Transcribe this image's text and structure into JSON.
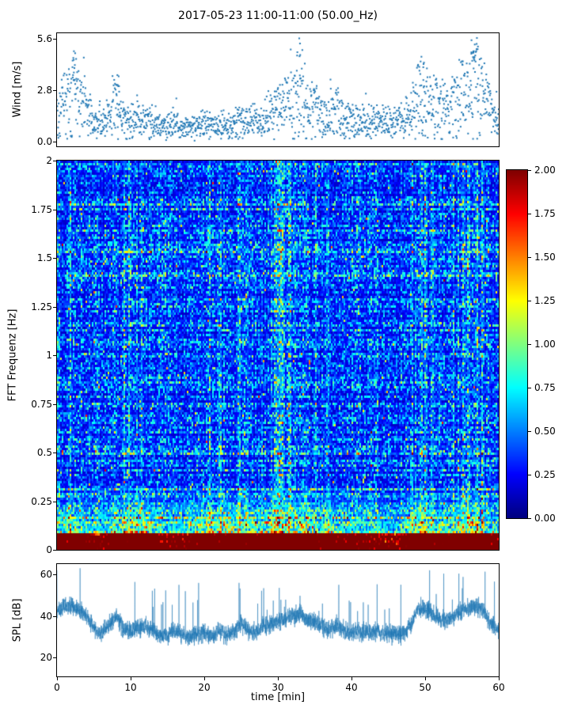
{
  "title": "2017-05-23 11:00-11:00 (50.00_Hz)",
  "xlabel": "time [min]",
  "xticks": {
    "values": [
      0,
      10,
      20,
      30,
      40,
      50,
      60
    ],
    "labels": [
      "0",
      "10",
      "20",
      "30",
      "40",
      "50",
      "60"
    ]
  },
  "colorbar": {
    "colormap": "jet",
    "range": [
      0,
      2
    ],
    "tick_values": [
      2,
      1.75,
      1.5,
      1.25,
      1,
      0.75,
      0.5,
      0.25,
      0
    ],
    "tick_labels": [
      "2.00",
      "1.75",
      "1.50",
      "1.25",
      "1.00",
      "0.75",
      "0.50",
      "0.25",
      "0.00"
    ]
  },
  "chart_data": [
    {
      "type": "scatter",
      "name": "wind",
      "ylabel": "Wind [m/s]",
      "x_range": [
        0,
        60
      ],
      "data_y_range": [
        0,
        5.6
      ],
      "axis_y_range": [
        -0.28,
        5.88
      ],
      "yticks": {
        "values": [
          0,
          2.8,
          5.6
        ],
        "labels": [
          "0.0",
          "2.8",
          "5.6"
        ]
      },
      "point_color": "#1f77b4",
      "n_points": 1600,
      "mean_per_minute": [
        2.2,
        3.0,
        3.2,
        3.0,
        2.2,
        1.2,
        1.0,
        1.5,
        2.5,
        1.6,
        1.3,
        1.5,
        1.4,
        1.2,
        1.0,
        1.0,
        1.2,
        1.0,
        0.9,
        1.0,
        1.1,
        1.0,
        1.2,
        1.0,
        1.1,
        1.5,
        1.3,
        1.2,
        1.5,
        1.8,
        2.2,
        2.5,
        2.8,
        3.0,
        2.5,
        2.2,
        1.8,
        1.5,
        2.0,
        1.5,
        1.3,
        1.5,
        1.3,
        1.5,
        1.3,
        1.2,
        1.3,
        1.2,
        2.0,
        3.0,
        3.2,
        2.8,
        2.5,
        2.2,
        2.8,
        3.2,
        3.5,
        3.8,
        3.2,
        2.0,
        1.5
      ],
      "peak_points": [
        [
          2.3,
          4.9
        ],
        [
          8.2,
          3.6
        ],
        [
          32.9,
          5.6
        ],
        [
          49.5,
          4.6
        ],
        [
          56.3,
          5.5
        ],
        [
          57.0,
          5.3
        ]
      ]
    },
    {
      "type": "heatmap",
      "name": "spectrogram",
      "ylabel": "FFT Frequenz [Hz]",
      "x_range": [
        0,
        60
      ],
      "y_range": [
        0,
        2
      ],
      "colormap": "jet",
      "value_range": [
        0,
        2
      ],
      "yticks": {
        "values": [
          0,
          0.25,
          0.5,
          0.75,
          1,
          1.25,
          1.5,
          1.75,
          2
        ],
        "labels": [
          "0",
          "0.25",
          "0.5",
          "0.75",
          "1",
          "1.25",
          "1.5",
          "1.75",
          "2"
        ]
      },
      "low_frequency_cutoff": 0.4,
      "activity_per_minute": [
        0.7,
        0.8,
        0.8,
        0.7,
        0.5,
        0.4,
        0.4,
        0.5,
        0.8,
        0.9,
        0.9,
        1.0,
        0.9,
        0.7,
        0.5,
        0.5,
        0.5,
        0.5,
        0.6,
        0.7,
        0.9,
        0.9,
        0.8,
        0.9,
        0.8,
        0.9,
        0.8,
        0.7,
        0.8,
        0.9,
        0.9,
        1.0,
        1.0,
        0.9,
        0.9,
        0.8,
        0.7,
        0.8,
        0.7,
        0.6,
        0.6,
        0.5,
        0.5,
        0.5,
        0.5,
        0.4,
        0.4,
        0.5,
        0.8,
        0.9,
        0.9,
        0.8,
        0.7,
        0.7,
        0.8,
        0.9,
        0.9,
        0.9,
        0.8,
        0.6,
        0.5
      ],
      "description": "Blue background noise (values 0.2-0.6) over full band; strong yellow-orange-red energy below 0.25 Hz; near-continuous dark red band at 0 Hz; vertical bursts of elevated energy aligned with wind activity"
    },
    {
      "type": "line",
      "name": "spl",
      "ylabel": "SPL [dB]",
      "x_range": [
        0,
        60
      ],
      "axis_y_range": [
        11,
        65
      ],
      "yticks": {
        "values": [
          20,
          40,
          60
        ],
        "labels": [
          "20",
          "40",
          "60"
        ]
      },
      "line_color": "#1f77b4",
      "mean_per_minute": [
        42,
        45,
        45,
        43,
        40,
        34,
        32,
        35,
        40,
        34,
        33,
        35,
        34,
        33,
        31,
        31,
        33,
        31,
        30,
        31,
        32,
        31,
        33,
        31,
        32,
        36,
        33,
        32,
        35,
        36,
        38,
        39,
        40,
        41,
        38,
        37,
        35,
        33,
        36,
        33,
        32,
        33,
        32,
        33,
        32,
        31,
        32,
        31,
        36,
        43,
        44,
        41,
        39,
        38,
        40,
        43,
        44,
        45,
        42,
        36,
        33
      ]
    }
  ]
}
